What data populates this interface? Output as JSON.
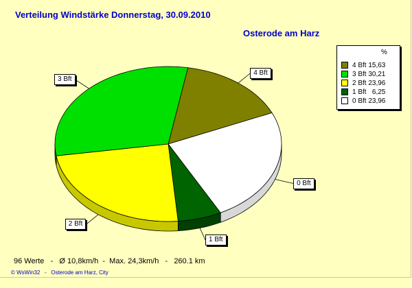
{
  "title": "Verteilung Windstärke  Donnerstag, 30.09.2010",
  "location": "Osterode am Harz",
  "legend_header": "%",
  "stats": "96 Werte   -   Ø 10,8km/h  -  Max. 24,3km/h   -   260.1 km",
  "footer": "© WsWin32   -   Osterode am Harz, City",
  "chart_data": {
    "type": "pie",
    "title": "Verteilung Windstärke  Donnerstag, 30.09.2010",
    "legend_position": "top-right",
    "slices": [
      {
        "label": "4 Bft",
        "legend": "4 Bft 15,63",
        "value": 15.63,
        "color": "#808000",
        "side_color": "#505000"
      },
      {
        "label": "0 Bft",
        "legend": "0 Bft 23,96",
        "value": 23.96,
        "color": "#ffffff",
        "side_color": "#d8d8d8"
      },
      {
        "label": "1 Bft",
        "legend": "1 Bft   6,25",
        "value": 6.25,
        "color": "#006400",
        "side_color": "#004000"
      },
      {
        "label": "2 Bft",
        "legend": "2 Bft 23,96",
        "value": 23.96,
        "color": "#ffff00",
        "side_color": "#c8c800"
      },
      {
        "label": "3 Bft",
        "legend": "3 Bft 30,21",
        "value": 30.21,
        "color": "#00e000",
        "side_color": "#00b000"
      }
    ],
    "legend_order": [
      "4 Bft",
      "3 Bft",
      "2 Bft",
      "1 Bft",
      "0 Bft"
    ]
  }
}
